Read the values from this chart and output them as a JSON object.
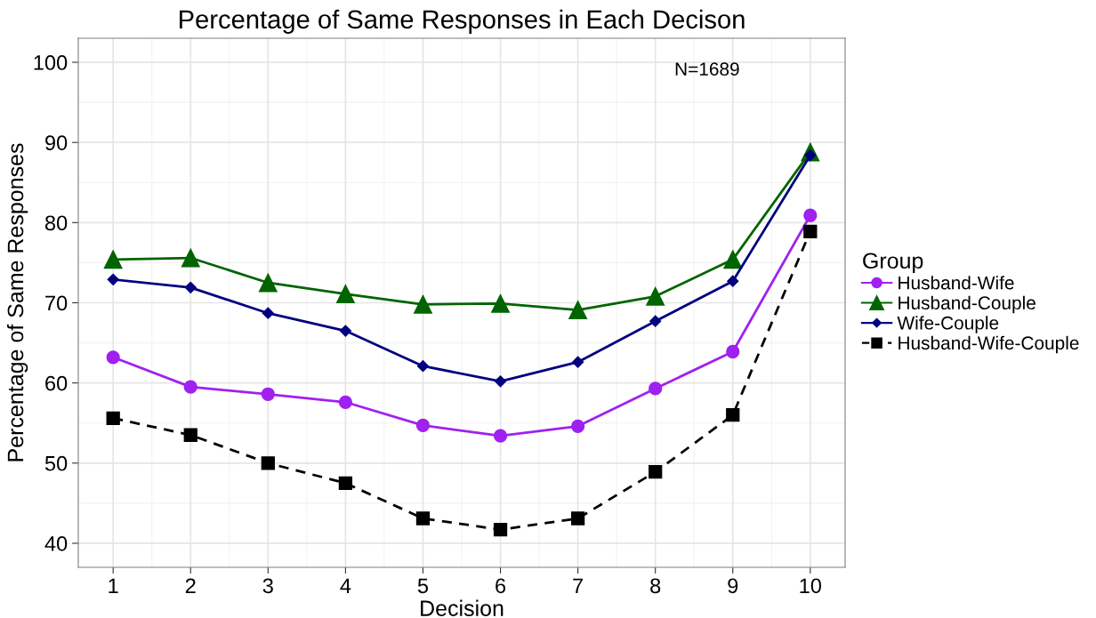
{
  "chart_data": {
    "type": "line",
    "title": "Percentage of Same Responses in Each Decison",
    "xlabel": "Decision",
    "ylabel": "Percentage of Same Responses",
    "legend_title": "Group",
    "x": [
      1,
      2,
      3,
      4,
      5,
      6,
      7,
      8,
      9,
      10
    ],
    "series": [
      {
        "name": "Husband-Wife",
        "color": "#a020f0",
        "marker": "circle",
        "line_style": "solid",
        "values": [
          63.2,
          59.5,
          58.6,
          57.6,
          54.7,
          53.4,
          54.6,
          59.3,
          63.9,
          80.9
        ]
      },
      {
        "name": "Husband-Couple",
        "color": "#006400",
        "marker": "triangle",
        "line_style": "solid",
        "values": [
          75.4,
          75.6,
          72.5,
          71.1,
          69.8,
          69.9,
          69.1,
          70.8,
          75.4,
          88.8
        ]
      },
      {
        "name": "Wife-Couple",
        "color": "#000080",
        "marker": "diamond",
        "line_style": "solid",
        "values": [
          72.9,
          71.9,
          68.7,
          66.5,
          62.1,
          60.2,
          62.6,
          67.7,
          72.7,
          88.4
        ]
      },
      {
        "name": "Husband-Wife-Couple",
        "color": "#000000",
        "marker": "square",
        "line_style": "dashed",
        "values": [
          55.6,
          53.5,
          50.0,
          47.5,
          43.1,
          41.7,
          43.1,
          48.9,
          56.0,
          78.9
        ]
      }
    ],
    "xlim": [
      0.55,
      10.45
    ],
    "xticks": [
      1,
      2,
      3,
      4,
      5,
      6,
      7,
      8,
      9,
      10
    ],
    "ylim": [
      37,
      103
    ],
    "yticks": [
      40,
      50,
      60,
      70,
      80,
      90,
      100
    ],
    "annotations": [
      "N=1689"
    ],
    "grid": true,
    "legend": "right"
  }
}
